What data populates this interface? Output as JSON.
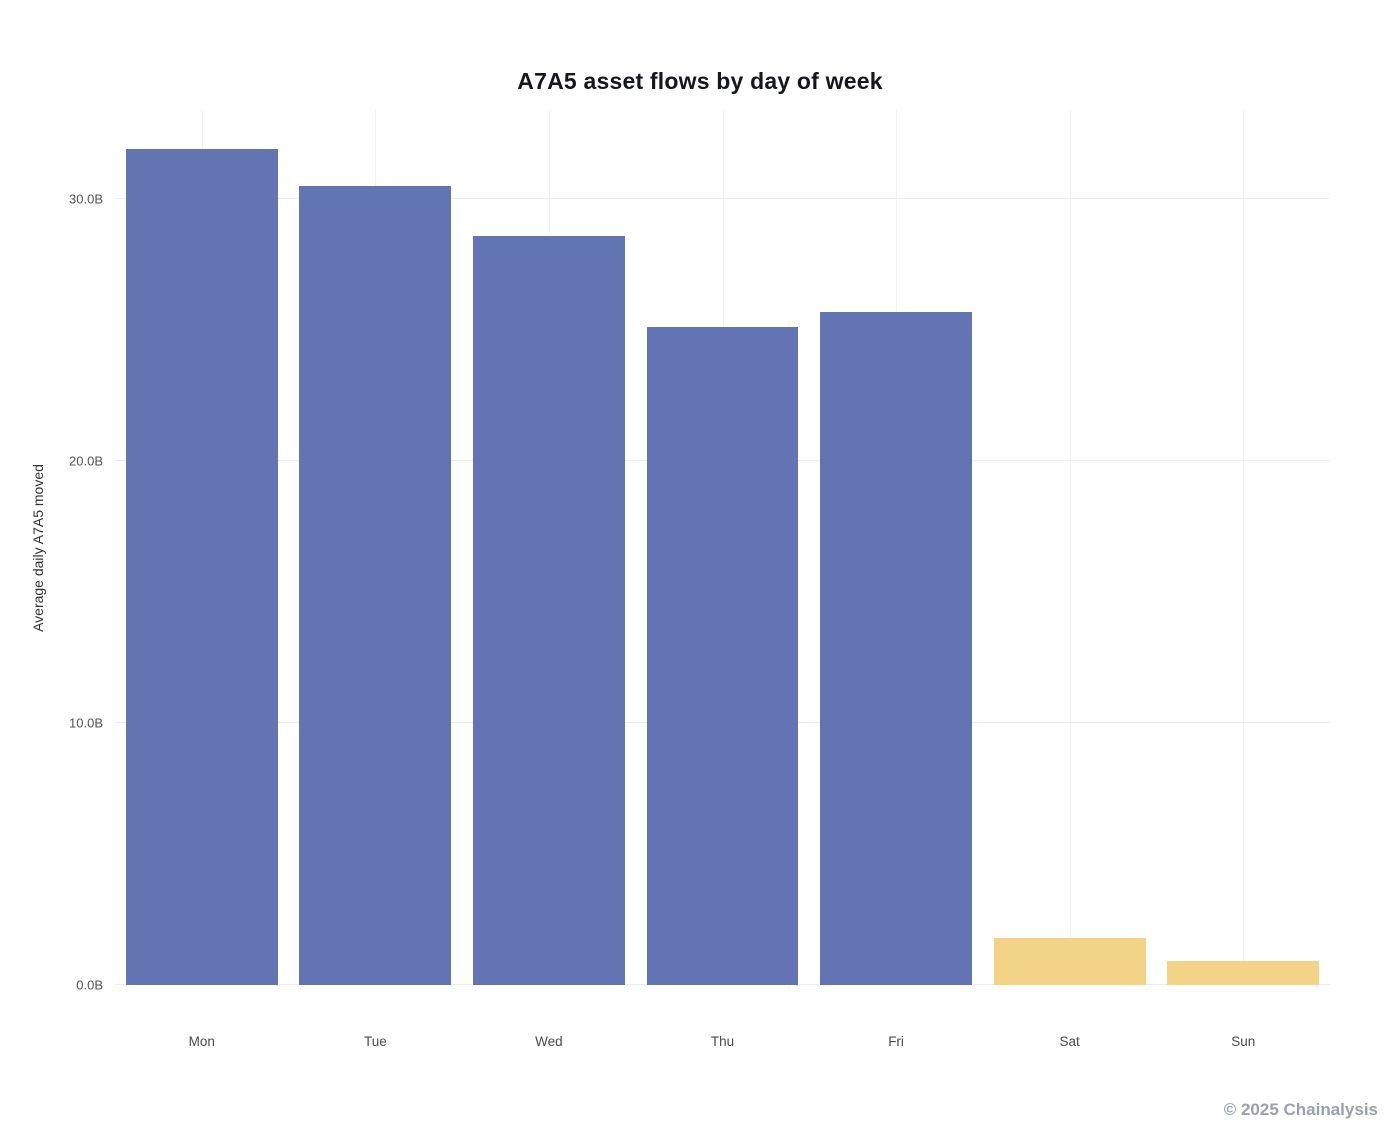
{
  "chart_data": {
    "type": "bar",
    "title": "A7A5 asset flows by day of week",
    "ylabel": "Average daily A7A5 moved",
    "xlabel": "",
    "categories": [
      "Mon",
      "Tue",
      "Wed",
      "Thu",
      "Fri",
      "Sat",
      "Sun"
    ],
    "values": [
      31.9,
      30.5,
      28.6,
      25.1,
      25.7,
      1.8,
      0.9
    ],
    "unit": "B",
    "ylim": [
      0,
      33.4
    ],
    "yticks": [
      0,
      10,
      20,
      30
    ],
    "ytick_labels": [
      "0.0B",
      "10.0B",
      "20.0B",
      "30.0B"
    ],
    "bar_colors": [
      "#6274b2",
      "#6274b2",
      "#6274b2",
      "#6274b2",
      "#6274b2",
      "#f3d385",
      "#f3d385"
    ],
    "grid": true,
    "legend_position": "none",
    "colors": {
      "weekday_bar": "#6274b2",
      "weekend_bar": "#f3d385",
      "gridline": "#ececec",
      "title_text": "#15171c",
      "tick_text": "#555555",
      "footer_text": "#9aa1ab"
    }
  },
  "footer": {
    "credit": "© 2025 Chainalysis"
  }
}
